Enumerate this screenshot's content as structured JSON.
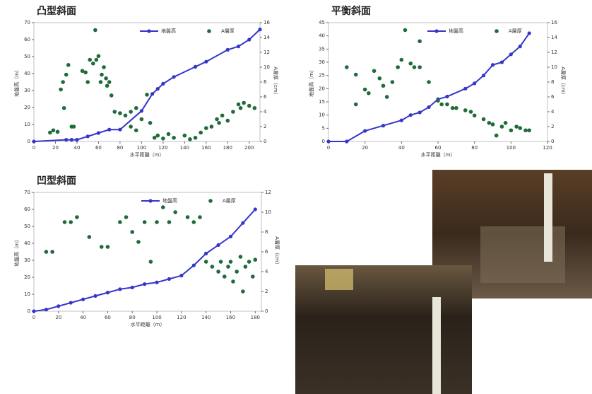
{
  "chart_data": [
    {
      "type": "line_scatter",
      "title": "凸型斜面",
      "xlabel": "水平距離（m）",
      "ylabel": "地盤高（m）",
      "y2label": "A層厚（cm）",
      "xlim": [
        0,
        210
      ],
      "xticks": [
        0,
        20,
        40,
        60,
        80,
        100,
        120,
        140,
        160,
        180,
        200
      ],
      "ylim": [
        0,
        70
      ],
      "yticks": [
        0,
        10,
        20,
        30,
        40,
        50,
        60,
        70
      ],
      "y2lim": [
        0,
        16
      ],
      "y2ticks": [
        0,
        2,
        4,
        6,
        8,
        10,
        12,
        14,
        16
      ],
      "legend": "upper right",
      "series": [
        {
          "name": "地盤高",
          "color": "#3535c8",
          "kind": "line",
          "x": [
            0,
            30,
            35,
            40,
            50,
            60,
            70,
            80,
            100,
            110,
            115,
            120,
            130,
            150,
            160,
            180,
            190,
            200,
            210
          ],
          "values": [
            0,
            1,
            1,
            1,
            3,
            5,
            7,
            7,
            18,
            28,
            31,
            34,
            38,
            44,
            47,
            54,
            56,
            60,
            66
          ]
        },
        {
          "name": "A層厚",
          "color": "#1f6b3a",
          "kind": "scatter",
          "axis": "y2",
          "x": [
            15,
            18,
            22,
            25,
            27,
            28,
            30,
            32,
            35,
            37,
            45,
            48,
            50,
            52,
            55,
            57,
            58,
            60,
            62,
            63,
            65,
            67,
            68,
            70,
            72,
            75,
            80,
            85,
            90,
            95,
            90,
            95,
            100,
            105,
            108,
            112,
            115,
            120,
            125,
            130,
            140,
            145,
            150,
            155,
            160,
            165,
            170,
            172,
            175,
            180,
            185,
            190,
            192,
            195,
            200,
            205
          ],
          "values": [
            1.2,
            1.5,
            1.3,
            7,
            8,
            4.5,
            9,
            10.3,
            2,
            2,
            9.5,
            9.3,
            8,
            11,
            10.5,
            15,
            11,
            11.5,
            8,
            9,
            10,
            8.5,
            7.5,
            8,
            6.2,
            4,
            3.8,
            3.5,
            4,
            4.5,
            2,
            1.5,
            3,
            6.3,
            2.5,
            0.5,
            0.8,
            0.4,
            1,
            0.5,
            0.8,
            0.3,
            0.5,
            1.2,
            1.8,
            2,
            3,
            2.5,
            3.5,
            2.8,
            4,
            5,
            4.5,
            5.2,
            4.8,
            4.5
          ]
        }
      ]
    },
    {
      "type": "line_scatter",
      "title": "平衡斜面",
      "xlabel": "水平距離（m）",
      "ylabel": "地盤高（m）",
      "y2label": "A層厚（cm）",
      "xlim": [
        0,
        120
      ],
      "xticks": [
        0,
        20,
        40,
        60,
        80,
        100,
        120
      ],
      "ylim": [
        0,
        45
      ],
      "yticks": [
        0,
        5,
        10,
        15,
        20,
        25,
        30,
        35,
        40,
        45
      ],
      "y2lim": [
        0,
        16
      ],
      "y2ticks": [
        0,
        2,
        4,
        6,
        8,
        10,
        12,
        14,
        16
      ],
      "legend": "upper right",
      "series": [
        {
          "name": "地盤高",
          "color": "#3535c8",
          "kind": "line",
          "x": [
            0,
            10,
            20,
            30,
            40,
            45,
            50,
            55,
            60,
            65,
            75,
            80,
            85,
            90,
            95,
            100,
            105,
            110
          ],
          "values": [
            0,
            0,
            4,
            6,
            8,
            10,
            11,
            13,
            16,
            17,
            20,
            22,
            25,
            29,
            30,
            33,
            36,
            41
          ]
        },
        {
          "name": "A層厚",
          "color": "#1f6b3a",
          "kind": "scatter",
          "axis": "y2",
          "x": [
            10,
            15,
            15,
            20,
            22,
            25,
            28,
            30,
            32,
            35,
            38,
            40,
            42,
            45,
            47,
            50,
            50,
            55,
            60,
            62,
            65,
            68,
            70,
            75,
            78,
            80,
            85,
            88,
            90,
            92,
            95,
            97,
            100,
            103,
            105,
            108,
            110
          ],
          "values": [
            10,
            9,
            5,
            7,
            6.5,
            9.5,
            8.5,
            7.5,
            6,
            8,
            10,
            11,
            15,
            10.5,
            10,
            13.5,
            10,
            8,
            5.5,
            5,
            5,
            4.5,
            4.5,
            4.2,
            4,
            3.5,
            3,
            2.5,
            2.3,
            0.8,
            2,
            2.5,
            1.5,
            2,
            1.8,
            1.5,
            1.5
          ]
        }
      ]
    },
    {
      "type": "line_scatter",
      "title": "凹型斜面",
      "xlabel": "水平距離（m）",
      "ylabel": "地盤高（m）",
      "y2label": "A層厚（cm）",
      "xlim": [
        0,
        185
      ],
      "xticks": [
        0,
        20,
        40,
        60,
        80,
        100,
        120,
        140,
        160,
        180
      ],
      "ylim": [
        0,
        70
      ],
      "yticks": [
        0,
        10,
        20,
        30,
        40,
        50,
        60,
        70
      ],
      "y2lim": [
        0,
        12
      ],
      "y2ticks": [
        0,
        2,
        4,
        6,
        8,
        10,
        12
      ],
      "legend": "upper right",
      "series": [
        {
          "name": "地盤高",
          "color": "#3535c8",
          "kind": "line",
          "x": [
            0,
            10,
            20,
            30,
            40,
            50,
            60,
            70,
            80,
            90,
            100,
            110,
            120,
            130,
            140,
            150,
            160,
            170,
            180
          ],
          "values": [
            0,
            1,
            3,
            5,
            7,
            9,
            11,
            13,
            14,
            16,
            17,
            19,
            21,
            27,
            34,
            39,
            44,
            52,
            60
          ]
        },
        {
          "name": "A層厚",
          "color": "#1f6b3a",
          "kind": "scatter",
          "axis": "y2",
          "x": [
            10,
            15,
            25,
            30,
            35,
            45,
            55,
            60,
            70,
            75,
            80,
            85,
            90,
            95,
            100,
            105,
            110,
            115,
            125,
            130,
            135,
            140,
            145,
            150,
            152,
            155,
            158,
            160,
            162,
            165,
            168,
            170,
            172,
            175,
            178,
            180
          ],
          "values": [
            6,
            6,
            9,
            9,
            9.5,
            7.5,
            6.5,
            6.5,
            9,
            9.5,
            8,
            7,
            9,
            5,
            9,
            10.5,
            9,
            10,
            9.5,
            9,
            9.5,
            5,
            4.5,
            4,
            5,
            3.5,
            4.5,
            5,
            3,
            4,
            5.5,
            2,
            4.5,
            5,
            3.5,
            5.2
          ]
        }
      ]
    }
  ]
}
